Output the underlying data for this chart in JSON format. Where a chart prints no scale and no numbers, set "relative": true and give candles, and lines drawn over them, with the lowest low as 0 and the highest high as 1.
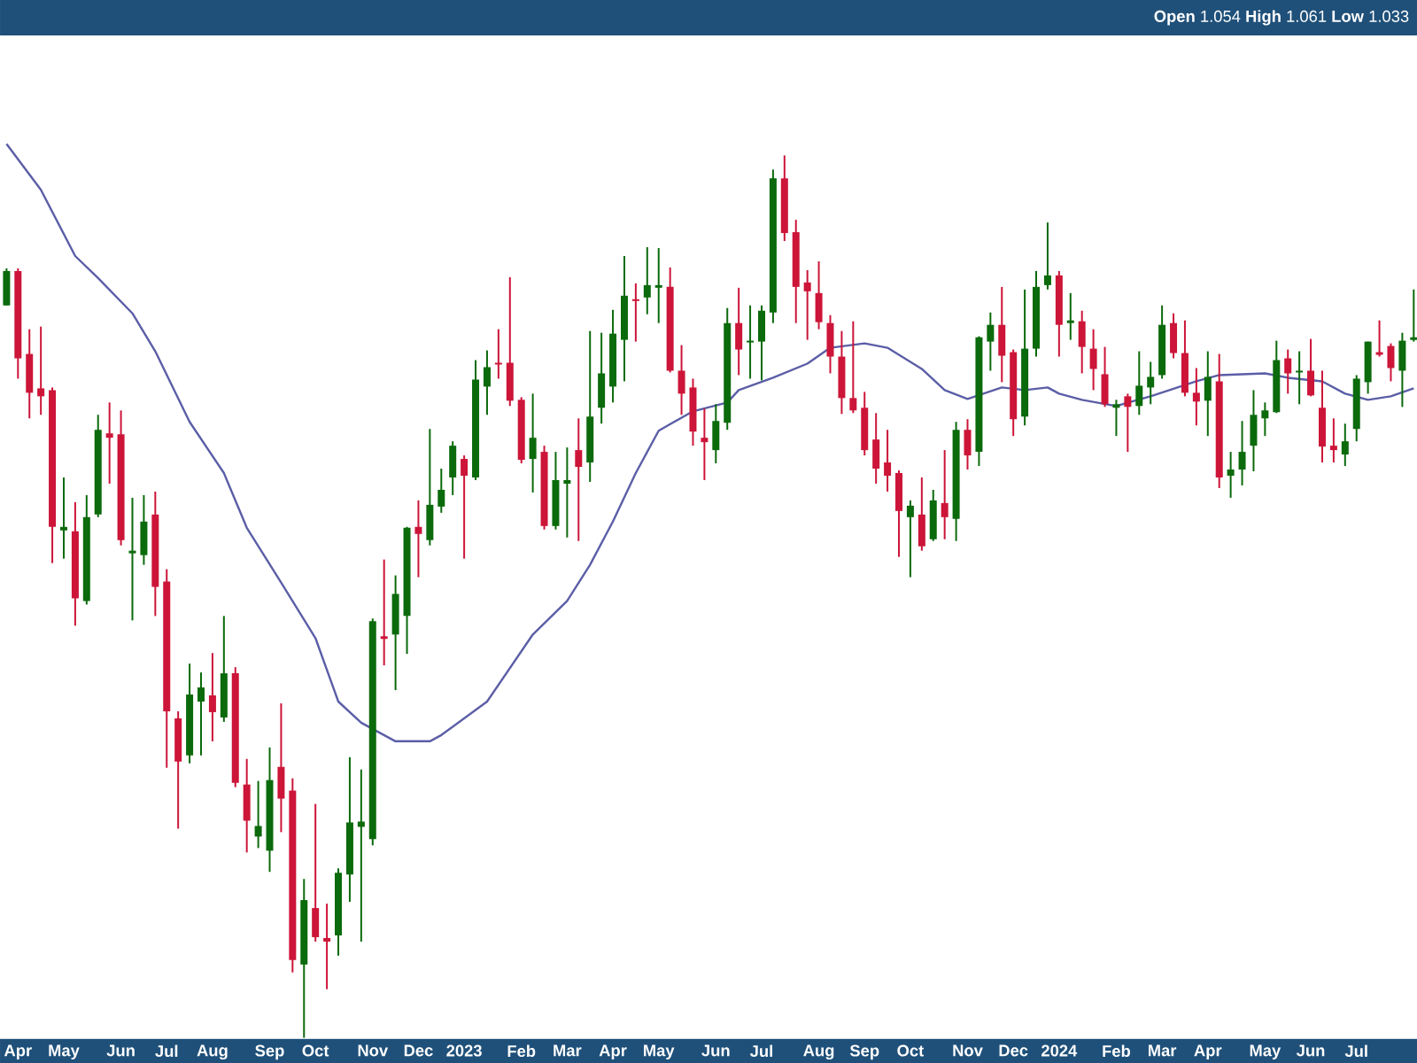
{
  "chart_data": {
    "type": "candlestick",
    "relative": true,
    "annotations": [
      "**Open** 1.054 **High** 1.061 **Low** 1.033"
    ],
    "xlim": [
      "2022-03-24",
      "2024-08-07"
    ],
    "xticks": [
      {
        "value": "2022-04-04",
        "label": "Apr"
      },
      {
        "value": "2022-05-02",
        "label": "May"
      },
      {
        "value": "2022-06-06",
        "label": "Jun"
      },
      {
        "value": "2022-07-04",
        "label": "Jul"
      },
      {
        "value": "2022-08-01",
        "label": "Aug"
      },
      {
        "value": "2022-09-05",
        "label": "Sep"
      },
      {
        "value": "2022-10-03",
        "label": "Oct"
      },
      {
        "value": "2022-11-07",
        "label": "Nov"
      },
      {
        "value": "2022-12-05",
        "label": "Dec"
      },
      {
        "value": "2023-01-02",
        "label": "2023"
      },
      {
        "value": "2023-02-06",
        "label": "Feb"
      },
      {
        "value": "2023-03-06",
        "label": "Mar"
      },
      {
        "value": "2023-04-03",
        "label": "Apr"
      },
      {
        "value": "2023-05-01",
        "label": "May"
      },
      {
        "value": "2023-06-05",
        "label": "Jun"
      },
      {
        "value": "2023-07-03",
        "label": "Jul"
      },
      {
        "value": "2023-08-07",
        "label": "Aug"
      },
      {
        "value": "2023-09-04",
        "label": "Sep"
      },
      {
        "value": "2023-10-02",
        "label": "Oct"
      },
      {
        "value": "2023-11-06",
        "label": "Nov"
      },
      {
        "value": "2023-12-04",
        "label": "Dec"
      },
      {
        "value": "2024-01-01",
        "label": "2024"
      },
      {
        "value": "2024-02-05",
        "label": "Feb"
      },
      {
        "value": "2024-03-04",
        "label": "Mar"
      },
      {
        "value": "2024-04-01",
        "label": "Apr"
      },
      {
        "value": "2024-05-06",
        "label": "May"
      },
      {
        "value": "2024-06-03",
        "label": "Jun"
      },
      {
        "value": "2024-07-01",
        "label": "Jul"
      }
    ],
    "x": [
      "2022-03-28",
      "2022-04-04",
      "2022-04-11",
      "2022-04-18",
      "2022-04-25",
      "2022-05-02",
      "2022-05-09",
      "2022-05-16",
      "2022-05-23",
      "2022-05-30",
      "2022-06-06",
      "2022-06-13",
      "2022-06-20",
      "2022-06-27",
      "2022-07-04",
      "2022-07-11",
      "2022-07-18",
      "2022-07-25",
      "2022-08-01",
      "2022-08-08",
      "2022-08-15",
      "2022-08-22",
      "2022-08-29",
      "2022-09-05",
      "2022-09-12",
      "2022-09-19",
      "2022-09-26",
      "2022-10-03",
      "2022-10-10",
      "2022-10-17",
      "2022-10-24",
      "2022-10-31",
      "2022-11-07",
      "2022-11-14",
      "2022-11-21",
      "2022-11-28",
      "2022-12-05",
      "2022-12-12",
      "2022-12-19",
      "2022-12-26",
      "2023-01-02",
      "2023-01-09",
      "2023-01-16",
      "2023-01-23",
      "2023-01-30",
      "2023-02-06",
      "2023-02-13",
      "2023-02-20",
      "2023-02-27",
      "2023-03-06",
      "2023-03-13",
      "2023-03-20",
      "2023-03-27",
      "2023-04-03",
      "2023-04-10",
      "2023-04-17",
      "2023-04-24",
      "2023-05-01",
      "2023-05-08",
      "2023-05-15",
      "2023-05-22",
      "2023-05-29",
      "2023-06-05",
      "2023-06-12",
      "2023-06-19",
      "2023-06-26",
      "2023-07-03",
      "2023-07-10",
      "2023-07-17",
      "2023-07-24",
      "2023-07-31",
      "2023-08-07",
      "2023-08-14",
      "2023-08-21",
      "2023-08-28",
      "2023-09-04",
      "2023-09-11",
      "2023-09-18",
      "2023-09-25",
      "2023-10-02",
      "2023-10-09",
      "2023-10-16",
      "2023-10-23",
      "2023-10-30",
      "2023-11-06",
      "2023-11-13",
      "2023-11-20",
      "2023-11-27",
      "2023-12-04",
      "2023-12-11",
      "2023-12-18",
      "2023-12-25",
      "2024-01-01",
      "2024-01-08",
      "2024-01-15",
      "2024-01-22",
      "2024-01-29",
      "2024-02-05",
      "2024-02-12",
      "2024-02-19",
      "2024-02-26",
      "2024-03-04",
      "2024-03-11",
      "2024-03-18",
      "2024-03-25",
      "2024-04-01",
      "2024-04-08",
      "2024-04-15",
      "2024-04-22",
      "2024-04-29",
      "2024-05-06",
      "2024-05-13",
      "2024-05-20",
      "2024-05-27",
      "2024-06-03",
      "2024-06-10",
      "2024-06-17",
      "2024-06-24",
      "2024-07-01",
      "2024-07-08",
      "2024-07-15",
      "2024-07-22",
      "2024-07-29",
      "2024-08-05"
    ],
    "ohlc": [
      [
        0.83,
        0.872,
        0.83,
        0.869
      ],
      [
        0.869,
        0.872,
        0.747,
        0.77
      ],
      [
        0.775,
        0.803,
        0.702,
        0.731
      ],
      [
        0.736,
        0.806,
        0.706,
        0.727
      ],
      [
        0.734,
        0.737,
        0.538,
        0.579
      ],
      [
        0.575,
        0.635,
        0.543,
        0.579
      ],
      [
        0.574,
        0.607,
        0.467,
        0.498
      ],
      [
        0.495,
        0.615,
        0.491,
        0.59
      ],
      [
        0.593,
        0.706,
        0.59,
        0.689
      ],
      [
        0.685,
        0.72,
        0.628,
        0.68
      ],
      [
        0.684,
        0.711,
        0.558,
        0.564
      ],
      [
        0.549,
        0.612,
        0.473,
        0.552
      ],
      [
        0.547,
        0.615,
        0.536,
        0.585
      ],
      [
        0.593,
        0.619,
        0.478,
        0.511
      ],
      [
        0.517,
        0.531,
        0.306,
        0.37
      ],
      [
        0.362,
        0.37,
        0.237,
        0.313
      ],
      [
        0.32,
        0.424,
        0.311,
        0.389
      ],
      [
        0.381,
        0.414,
        0.32,
        0.397
      ],
      [
        0.388,
        0.436,
        0.336,
        0.369
      ],
      [
        0.363,
        0.478,
        0.358,
        0.413
      ],
      [
        0.413,
        0.42,
        0.284,
        0.289
      ],
      [
        0.287,
        0.316,
        0.21,
        0.246
      ],
      [
        0.228,
        0.291,
        0.215,
        0.24
      ],
      [
        0.212,
        0.329,
        0.188,
        0.292
      ],
      [
        0.307,
        0.379,
        0.233,
        0.271
      ],
      [
        0.28,
        0.294,
        0.074,
        0.088
      ],
      [
        0.083,
        0.18,
        0.0,
        0.156
      ],
      [
        0.147,
        0.265,
        0.109,
        0.114
      ],
      [
        0.113,
        0.152,
        0.055,
        0.109
      ],
      [
        0.116,
        0.192,
        0.093,
        0.187
      ],
      [
        0.185,
        0.318,
        0.154,
        0.244
      ],
      [
        0.239,
        0.304,
        0.109,
        0.245
      ],
      [
        0.225,
        0.475,
        0.218,
        0.472
      ],
      [
        0.455,
        0.542,
        0.422,
        0.452
      ],
      [
        0.457,
        0.524,
        0.394,
        0.503
      ],
      [
        0.478,
        0.579,
        0.435,
        0.578
      ],
      [
        0.579,
        0.609,
        0.522,
        0.571
      ],
      [
        0.564,
        0.69,
        0.558,
        0.604
      ],
      [
        0.602,
        0.645,
        0.595,
        0.621
      ],
      [
        0.635,
        0.676,
        0.615,
        0.671
      ],
      [
        0.656,
        0.66,
        0.543,
        0.637
      ],
      [
        0.635,
        0.768,
        0.632,
        0.746
      ],
      [
        0.738,
        0.779,
        0.706,
        0.76
      ],
      [
        0.765,
        0.803,
        0.747,
        0.763
      ],
      [
        0.765,
        0.862,
        0.716,
        0.722
      ],
      [
        0.723,
        0.726,
        0.651,
        0.655
      ],
      [
        0.656,
        0.73,
        0.618,
        0.68
      ],
      [
        0.664,
        0.671,
        0.576,
        0.58
      ],
      [
        0.58,
        0.664,
        0.576,
        0.632
      ],
      [
        0.628,
        0.669,
        0.567,
        0.632
      ],
      [
        0.666,
        0.702,
        0.563,
        0.647
      ],
      [
        0.652,
        0.801,
        0.63,
        0.704
      ],
      [
        0.714,
        0.799,
        0.696,
        0.753
      ],
      [
        0.738,
        0.825,
        0.72,
        0.798
      ],
      [
        0.791,
        0.886,
        0.744,
        0.841
      ],
      [
        0.837,
        0.855,
        0.789,
        0.835
      ],
      [
        0.839,
        0.896,
        0.82,
        0.853
      ],
      [
        0.85,
        0.895,
        0.81,
        0.853
      ],
      [
        0.851,
        0.873,
        0.754,
        0.756
      ],
      [
        0.756,
        0.785,
        0.706,
        0.73
      ],
      [
        0.737,
        0.747,
        0.671,
        0.687
      ],
      [
        0.68,
        0.713,
        0.632,
        0.675
      ],
      [
        0.666,
        0.718,
        0.651,
        0.699
      ],
      [
        0.697,
        0.827,
        0.689,
        0.81
      ],
      [
        0.81,
        0.85,
        0.751,
        0.78
      ],
      [
        0.788,
        0.83,
        0.747,
        0.79
      ],
      [
        0.789,
        0.83,
        0.745,
        0.824
      ],
      [
        0.822,
        0.984,
        0.81,
        0.974
      ],
      [
        0.974,
        1.0,
        0.903,
        0.912
      ],
      [
        0.913,
        0.927,
        0.81,
        0.851
      ],
      [
        0.856,
        0.87,
        0.791,
        0.846
      ],
      [
        0.844,
        0.88,
        0.803,
        0.811
      ],
      [
        0.81,
        0.819,
        0.753,
        0.772
      ],
      [
        0.772,
        0.801,
        0.707,
        0.725
      ],
      [
        0.725,
        0.812,
        0.708,
        0.711
      ],
      [
        0.714,
        0.732,
        0.66,
        0.666
      ],
      [
        0.678,
        0.708,
        0.628,
        0.645
      ],
      [
        0.652,
        0.689,
        0.619,
        0.637
      ],
      [
        0.64,
        0.643,
        0.545,
        0.597
      ],
      [
        0.59,
        0.609,
        0.522,
        0.603
      ],
      [
        0.593,
        0.635,
        0.552,
        0.557
      ],
      [
        0.565,
        0.621,
        0.563,
        0.609
      ],
      [
        0.606,
        0.666,
        0.565,
        0.59
      ],
      [
        0.588,
        0.698,
        0.563,
        0.689
      ],
      [
        0.689,
        0.701,
        0.644,
        0.66
      ],
      [
        0.664,
        0.795,
        0.648,
        0.794
      ],
      [
        0.789,
        0.822,
        0.756,
        0.808
      ],
      [
        0.808,
        0.851,
        0.743,
        0.773
      ],
      [
        0.777,
        0.78,
        0.682,
        0.701
      ],
      [
        0.704,
        0.848,
        0.694,
        0.781
      ],
      [
        0.781,
        0.869,
        0.772,
        0.851
      ],
      [
        0.853,
        0.924,
        0.848,
        0.864
      ],
      [
        0.864,
        0.869,
        0.772,
        0.808
      ],
      [
        0.81,
        0.844,
        0.791,
        0.813
      ],
      [
        0.812,
        0.824,
        0.753,
        0.783
      ],
      [
        0.781,
        0.803,
        0.734,
        0.758
      ],
      [
        0.752,
        0.783,
        0.715,
        0.718
      ],
      [
        0.714,
        0.723,
        0.682,
        0.718
      ],
      [
        0.727,
        0.73,
        0.664,
        0.715
      ],
      [
        0.716,
        0.778,
        0.706,
        0.739
      ],
      [
        0.737,
        0.766,
        0.718,
        0.749
      ],
      [
        0.751,
        0.83,
        0.747,
        0.808
      ],
      [
        0.81,
        0.821,
        0.77,
        0.776
      ],
      [
        0.776,
        0.813,
        0.727,
        0.731
      ],
      [
        0.731,
        0.759,
        0.694,
        0.721
      ],
      [
        0.722,
        0.778,
        0.682,
        0.749
      ],
      [
        0.744,
        0.775,
        0.623,
        0.635
      ],
      [
        0.637,
        0.664,
        0.612,
        0.644
      ],
      [
        0.644,
        0.699,
        0.626,
        0.664
      ],
      [
        0.671,
        0.734,
        0.642,
        0.706
      ],
      [
        0.702,
        0.72,
        0.682,
        0.711
      ],
      [
        0.709,
        0.79,
        0.708,
        0.768
      ],
      [
        0.77,
        0.78,
        0.73,
        0.753
      ],
      [
        0.754,
        0.778,
        0.718,
        0.756
      ],
      [
        0.756,
        0.792,
        0.727,
        0.728
      ],
      [
        0.714,
        0.756,
        0.652,
        0.67
      ],
      [
        0.671,
        0.702,
        0.652,
        0.666
      ],
      [
        0.661,
        0.696,
        0.648,
        0.676
      ],
      [
        0.69,
        0.751,
        0.676,
        0.747
      ],
      [
        0.743,
        0.789,
        0.73,
        0.789
      ],
      [
        0.777,
        0.813,
        0.772,
        0.774
      ],
      [
        0.784,
        0.787,
        0.744,
        0.759
      ],
      [
        0.756,
        0.799,
        0.715,
        0.79
      ],
      [
        0.791,
        0.848,
        0.789,
        0.794
      ]
    ],
    "colors": [
      "#0b6a0b",
      "#cc1538",
      "#cc1538",
      "#cc1538",
      "#cc1538",
      "#0b6a0b",
      "#cc1538",
      "#0b6a0b",
      "#0b6a0b",
      "#cc1538",
      "#cc1538",
      "#0b6a0b",
      "#0b6a0b",
      "#cc1538",
      "#cc1538",
      "#cc1538",
      "#0b6a0b",
      "#0b6a0b",
      "#cc1538",
      "#0b6a0b",
      "#cc1538",
      "#cc1538",
      "#0b6a0b",
      "#0b6a0b",
      "#cc1538",
      "#cc1538",
      "#0b6a0b",
      "#cc1538",
      "#cc1538",
      "#0b6a0b",
      "#0b6a0b",
      "#0b6a0b",
      "#0b6a0b",
      "#cc1538",
      "#0b6a0b",
      "#0b6a0b",
      "#cc1538",
      "#0b6a0b",
      "#0b6a0b",
      "#0b6a0b",
      "#cc1538",
      "#0b6a0b",
      "#0b6a0b",
      "#cc1538",
      "#cc1538",
      "#cc1538",
      "#0b6a0b",
      "#cc1538",
      "#0b6a0b",
      "#0b6a0b",
      "#cc1538",
      "#0b6a0b",
      "#0b6a0b",
      "#0b6a0b",
      "#0b6a0b",
      "#cc1538",
      "#0b6a0b",
      "#0b6a0b",
      "#cc1538",
      "#cc1538",
      "#cc1538",
      "#cc1538",
      "#0b6a0b",
      "#0b6a0b",
      "#cc1538",
      "#0b6a0b",
      "#0b6a0b",
      "#0b6a0b",
      "#cc1538",
      "#cc1538",
      "#cc1538",
      "#cc1538",
      "#cc1538",
      "#cc1538",
      "#cc1538",
      "#cc1538",
      "#cc1538",
      "#cc1538",
      "#cc1538",
      "#0b6a0b",
      "#cc1538",
      "#0b6a0b",
      "#cc1538",
      "#0b6a0b",
      "#cc1538",
      "#0b6a0b",
      "#0b6a0b",
      "#cc1538",
      "#cc1538",
      "#0b6a0b",
      "#0b6a0b",
      "#0b6a0b",
      "#cc1538",
      "#0b6a0b",
      "#cc1538",
      "#cc1538",
      "#cc1538",
      "#0b6a0b",
      "#cc1538",
      "#0b6a0b",
      "#0b6a0b",
      "#0b6a0b",
      "#cc1538",
      "#cc1538",
      "#cc1538",
      "#0b6a0b",
      "#cc1538",
      "#0b6a0b",
      "#0b6a0b",
      "#0b6a0b",
      "#0b6a0b",
      "#0b6a0b",
      "#cc1538",
      "#0b6a0b",
      "#cc1538",
      "#cc1538",
      "#cc1538",
      "#0b6a0b",
      "#0b6a0b",
      "#0b6a0b",
      "#cc1538",
      "#cc1538",
      "#0b6a0b",
      "#0b6a0b"
    ],
    "series": [
      {
        "type": "line",
        "color": "#5b5ea6",
        "x": [
          "2022-03-28",
          "2022-04-18",
          "2022-05-09",
          "2022-05-23",
          "2022-06-13",
          "2022-06-27",
          "2022-07-18",
          "2022-08-08",
          "2022-08-22",
          "2022-09-12",
          "2022-10-03",
          "2022-10-17",
          "2022-10-31",
          "2022-11-21",
          "2022-12-12",
          "2022-12-19",
          "2023-01-16",
          "2023-02-13",
          "2023-03-06",
          "2023-03-20",
          "2023-04-03",
          "2023-04-17",
          "2023-05-01",
          "2023-05-22",
          "2023-06-12",
          "2023-06-19",
          "2023-07-10",
          "2023-07-31",
          "2023-08-14",
          "2023-09-04",
          "2023-09-18",
          "2023-10-09",
          "2023-10-23",
          "2023-11-06",
          "2023-11-27",
          "2023-12-11",
          "2023-12-25",
          "2024-01-01",
          "2024-01-15",
          "2024-02-05",
          "2024-02-26",
          "2024-03-25",
          "2024-04-08",
          "2024-05-06",
          "2024-05-20",
          "2024-06-10",
          "2024-06-24",
          "2024-07-08",
          "2024-07-22",
          "2024-08-05"
        ],
        "values": [
          1.013,
          0.961,
          0.886,
          0.861,
          0.821,
          0.778,
          0.698,
          0.64,
          0.578,
          0.516,
          0.453,
          0.381,
          0.357,
          0.336,
          0.336,
          0.343,
          0.381,
          0.457,
          0.495,
          0.536,
          0.585,
          0.64,
          0.688,
          0.71,
          0.72,
          0.734,
          0.748,
          0.764,
          0.782,
          0.787,
          0.782,
          0.758,
          0.734,
          0.724,
          0.737,
          0.734,
          0.737,
          0.73,
          0.723,
          0.716,
          0.727,
          0.744,
          0.751,
          0.753,
          0.748,
          0.744,
          0.73,
          0.723,
          0.727,
          0.736
        ]
      }
    ]
  }
}
